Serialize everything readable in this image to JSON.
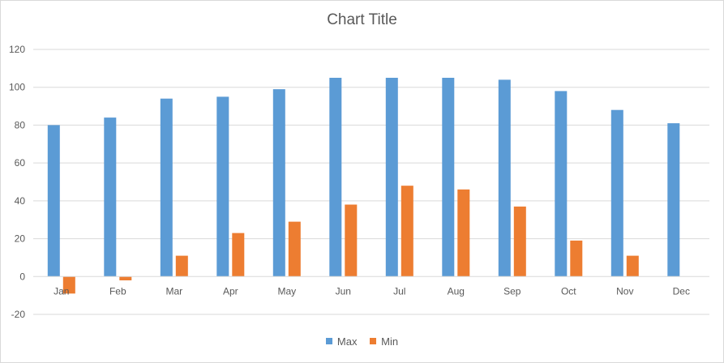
{
  "chart_data": {
    "type": "bar",
    "title": "Chart Title",
    "categories": [
      "Jan",
      "Feb",
      "Mar",
      "Apr",
      "May",
      "Jun",
      "Jul",
      "Aug",
      "Sep",
      "Oct",
      "Nov",
      "Dec"
    ],
    "series": [
      {
        "name": "Max",
        "color": "#5b9bd5",
        "values": [
          80,
          84,
          94,
          95,
          99,
          105,
          105,
          105,
          104,
          98,
          88,
          81
        ]
      },
      {
        "name": "Min",
        "color": "#ed7d31",
        "values": [
          -9,
          -2,
          11,
          23,
          29,
          38,
          48,
          46,
          37,
          19,
          11,
          0
        ]
      }
    ],
    "ylim": [
      -20,
      120
    ],
    "yticks": [
      "-20",
      "0",
      "20",
      "40",
      "60",
      "80",
      "100",
      "120"
    ],
    "grid": true,
    "legend_position": "bottom"
  }
}
